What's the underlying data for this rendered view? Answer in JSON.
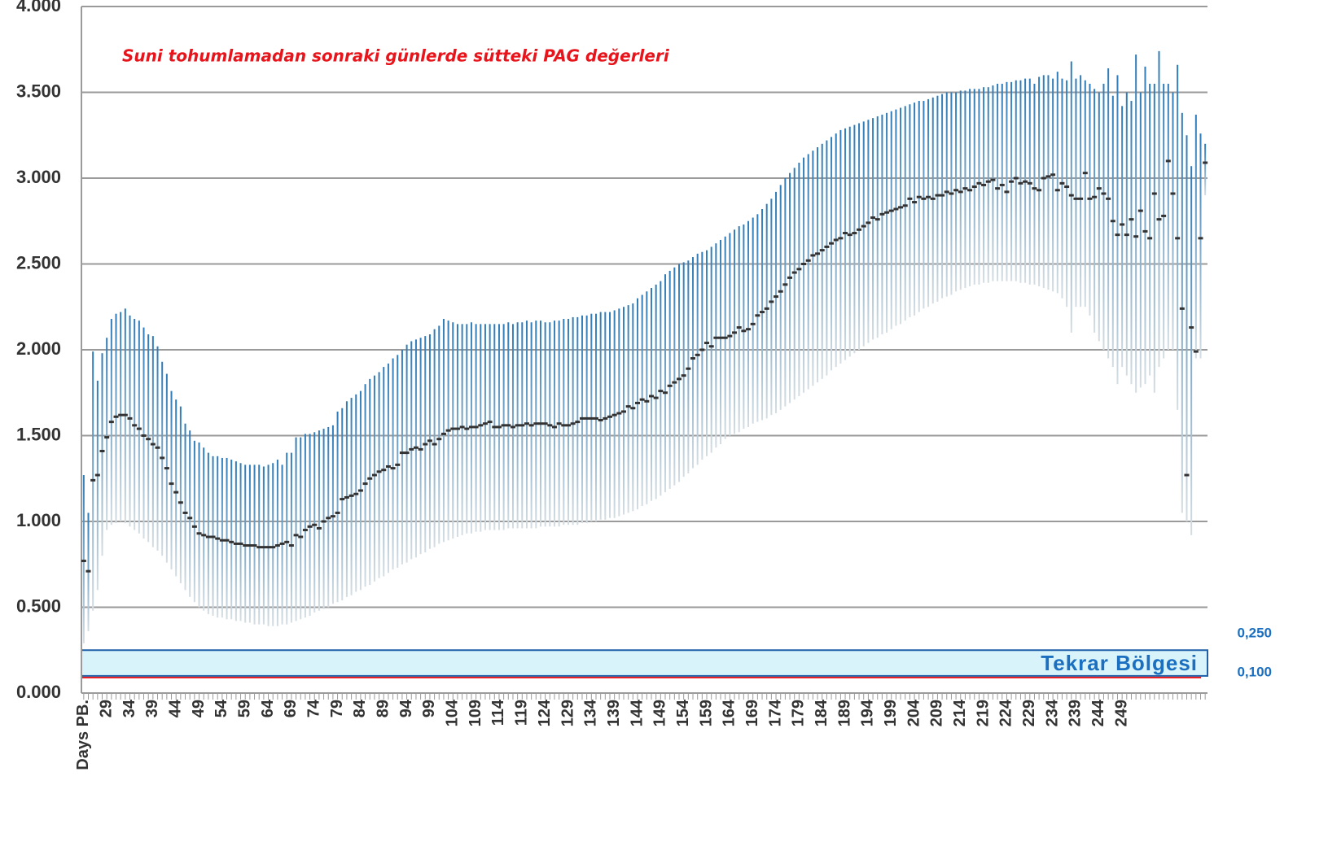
{
  "chart_data": {
    "type": "range",
    "title": "Suni tohumlamadan sonraki günlerde sütteki PAG değerleri",
    "x": [
      24,
      25,
      26,
      27,
      28,
      29,
      30,
      31,
      32,
      33,
      34,
      35,
      36,
      37,
      38,
      39,
      40,
      41,
      42,
      43,
      44,
      45,
      46,
      47,
      48,
      49,
      50,
      51,
      52,
      53,
      54,
      55,
      56,
      57,
      58,
      59,
      60,
      61,
      62,
      63,
      64,
      65,
      66,
      67,
      68,
      69,
      70,
      71,
      72,
      73,
      74,
      75,
      76,
      77,
      78,
      79,
      80,
      81,
      82,
      83,
      84,
      85,
      86,
      87,
      88,
      89,
      90,
      91,
      92,
      93,
      94,
      95,
      96,
      97,
      98,
      99,
      100,
      101,
      102,
      103,
      104,
      105,
      106,
      107,
      108,
      109,
      110,
      111,
      112,
      113,
      114,
      115,
      116,
      117,
      118,
      119,
      120,
      121,
      122,
      123,
      124,
      125,
      126,
      127,
      128,
      129,
      130,
      131,
      132,
      133,
      134,
      135,
      136,
      137,
      138,
      139,
      140,
      141,
      142,
      143,
      144,
      145,
      146,
      147,
      148,
      149,
      150,
      151,
      152,
      153,
      154,
      155,
      156,
      157,
      158,
      159,
      160,
      161,
      162,
      163,
      164,
      165,
      166,
      167,
      168,
      169,
      170,
      171,
      172,
      173,
      174,
      175,
      176,
      177,
      178,
      179,
      180,
      181,
      182,
      183,
      184,
      185,
      186,
      187,
      188,
      189,
      190,
      191,
      192,
      193,
      194,
      195,
      196,
      197,
      198,
      199,
      200,
      201,
      202,
      203,
      204,
      205,
      206,
      207,
      208,
      209,
      210,
      211,
      212,
      213,
      214,
      215,
      216,
      217,
      218,
      219,
      220,
      221,
      222,
      223,
      224,
      225,
      226,
      227,
      228,
      229,
      230,
      231,
      232,
      233,
      234,
      235,
      236,
      237,
      238,
      239,
      240,
      241,
      242,
      243,
      244,
      245,
      246,
      247,
      248,
      249,
      250,
      251,
      252,
      253,
      254,
      255,
      256,
      257,
      258,
      259,
      260,
      261,
      262,
      263,
      264,
      265,
      266,
      267
    ],
    "median": [
      0.77,
      0.71,
      1.24,
      1.27,
      1.41,
      1.49,
      1.58,
      1.61,
      1.62,
      1.62,
      1.6,
      1.56,
      1.54,
      1.5,
      1.48,
      1.45,
      1.43,
      1.37,
      1.31,
      1.22,
      1.17,
      1.11,
      1.05,
      1.02,
      0.97,
      0.93,
      0.92,
      0.91,
      0.91,
      0.9,
      0.89,
      0.89,
      0.88,
      0.87,
      0.87,
      0.86,
      0.86,
      0.86,
      0.85,
      0.85,
      0.85,
      0.85,
      0.86,
      0.87,
      0.88,
      0.86,
      0.92,
      0.91,
      0.95,
      0.97,
      0.98,
      0.96,
      1.0,
      1.02,
      1.03,
      1.05,
      1.13,
      1.14,
      1.15,
      1.16,
      1.18,
      1.22,
      1.25,
      1.27,
      1.29,
      1.3,
      1.32,
      1.31,
      1.33,
      1.4,
      1.4,
      1.42,
      1.43,
      1.42,
      1.45,
      1.47,
      1.45,
      1.48,
      1.51,
      1.53,
      1.54,
      1.54,
      1.55,
      1.54,
      1.55,
      1.55,
      1.56,
      1.57,
      1.58,
      1.55,
      1.55,
      1.56,
      1.56,
      1.55,
      1.56,
      1.56,
      1.57,
      1.56,
      1.57,
      1.57,
      1.57,
      1.56,
      1.55,
      1.57,
      1.56,
      1.56,
      1.57,
      1.58,
      1.6,
      1.6,
      1.6,
      1.6,
      1.59,
      1.6,
      1.61,
      1.62,
      1.63,
      1.64,
      1.67,
      1.66,
      1.69,
      1.71,
      1.7,
      1.73,
      1.72,
      1.76,
      1.75,
      1.79,
      1.81,
      1.83,
      1.85,
      1.89,
      1.95,
      1.97,
      2.0,
      2.04,
      2.02,
      2.07,
      2.07,
      2.07,
      2.08,
      2.1,
      2.13,
      2.11,
      2.12,
      2.15,
      2.2,
      2.22,
      2.24,
      2.28,
      2.31,
      2.34,
      2.38,
      2.42,
      2.45,
      2.47,
      2.5,
      2.52,
      2.55,
      2.56,
      2.58,
      2.6,
      2.62,
      2.64,
      2.65,
      2.68,
      2.67,
      2.68,
      2.7,
      2.72,
      2.74,
      2.77,
      2.76,
      2.79,
      2.8,
      2.81,
      2.82,
      2.83,
      2.84,
      2.88,
      2.86,
      2.89,
      2.88,
      2.89,
      2.88,
      2.9,
      2.9,
      2.92,
      2.91,
      2.93,
      2.92,
      2.94,
      2.93,
      2.95,
      2.97,
      2.96,
      2.98,
      2.99,
      2.94,
      2.96,
      2.92,
      2.98,
      3.0,
      2.97,
      2.98,
      2.97,
      2.94,
      2.93,
      3.0,
      3.01,
      3.02,
      2.93,
      2.97,
      2.95,
      2.9,
      2.88,
      2.88,
      3.03,
      2.88,
      2.89,
      2.94,
      2.91,
      2.88,
      2.75,
      2.67,
      2.73,
      2.67,
      2.76,
      2.66,
      2.81,
      2.69,
      2.65,
      2.91,
      2.76,
      2.78,
      3.1,
      2.91,
      2.65,
      2.24,
      1.27,
      2.13,
      1.99,
      2.65,
      3.09
    ],
    "high": [
      1.27,
      1.05,
      1.99,
      1.82,
      1.98,
      2.07,
      2.18,
      2.21,
      2.22,
      2.24,
      2.2,
      2.18,
      2.17,
      2.13,
      2.09,
      2.08,
      2.02,
      1.93,
      1.86,
      1.76,
      1.71,
      1.67,
      1.57,
      1.53,
      1.47,
      1.46,
      1.43,
      1.4,
      1.38,
      1.38,
      1.37,
      1.37,
      1.36,
      1.35,
      1.34,
      1.33,
      1.33,
      1.33,
      1.33,
      1.32,
      1.33,
      1.34,
      1.36,
      1.33,
      1.4,
      1.4,
      1.49,
      1.49,
      1.51,
      1.51,
      1.52,
      1.53,
      1.54,
      1.55,
      1.56,
      1.64,
      1.66,
      1.7,
      1.72,
      1.74,
      1.76,
      1.8,
      1.83,
      1.85,
      1.87,
      1.9,
      1.92,
      1.95,
      1.97,
      2.0,
      2.03,
      2.05,
      2.06,
      2.07,
      2.08,
      2.09,
      2.12,
      2.14,
      2.18,
      2.17,
      2.16,
      2.15,
      2.15,
      2.15,
      2.16,
      2.15,
      2.15,
      2.15,
      2.15,
      2.15,
      2.15,
      2.15,
      2.16,
      2.15,
      2.16,
      2.16,
      2.17,
      2.16,
      2.17,
      2.17,
      2.16,
      2.16,
      2.17,
      2.17,
      2.18,
      2.18,
      2.19,
      2.19,
      2.2,
      2.2,
      2.21,
      2.21,
      2.22,
      2.22,
      2.22,
      2.23,
      2.24,
      2.25,
      2.26,
      2.27,
      2.3,
      2.32,
      2.34,
      2.36,
      2.38,
      2.4,
      2.44,
      2.46,
      2.48,
      2.5,
      2.51,
      2.52,
      2.54,
      2.56,
      2.57,
      2.58,
      2.6,
      2.62,
      2.64,
      2.66,
      2.68,
      2.7,
      2.72,
      2.73,
      2.75,
      2.77,
      2.79,
      2.82,
      2.85,
      2.88,
      2.92,
      2.96,
      3.0,
      3.03,
      3.06,
      3.09,
      3.12,
      3.14,
      3.16,
      3.18,
      3.2,
      3.22,
      3.24,
      3.26,
      3.28,
      3.29,
      3.3,
      3.31,
      3.32,
      3.33,
      3.34,
      3.35,
      3.36,
      3.37,
      3.38,
      3.39,
      3.4,
      3.41,
      3.42,
      3.43,
      3.44,
      3.45,
      3.45,
      3.46,
      3.47,
      3.48,
      3.49,
      3.5,
      3.5,
      3.5,
      3.51,
      3.51,
      3.52,
      3.52,
      3.52,
      3.53,
      3.53,
      3.54,
      3.55,
      3.55,
      3.56,
      3.56,
      3.57,
      3.57,
      3.58,
      3.58,
      3.55,
      3.59,
      3.6,
      3.6,
      3.58,
      3.62,
      3.58,
      3.57,
      3.68,
      3.58,
      3.6,
      3.57,
      3.55,
      3.52,
      3.5,
      3.55,
      3.64,
      3.48,
      3.6,
      3.42,
      3.5,
      3.45,
      3.72,
      3.5,
      3.65,
      3.55,
      3.55,
      3.74,
      3.55,
      3.55,
      3.5,
      3.66,
      3.38,
      3.25,
      3.07,
      3.37,
      3.26,
      3.2
    ],
    "low": [
      0.29,
      0.36,
      0.48,
      0.6,
      0.8,
      0.95,
      0.98,
      0.99,
      1.0,
      0.99,
      0.97,
      0.95,
      0.93,
      0.9,
      0.88,
      0.85,
      0.83,
      0.8,
      0.76,
      0.72,
      0.68,
      0.64,
      0.6,
      0.56,
      0.53,
      0.5,
      0.48,
      0.46,
      0.45,
      0.44,
      0.44,
      0.43,
      0.43,
      0.42,
      0.42,
      0.41,
      0.41,
      0.4,
      0.4,
      0.4,
      0.39,
      0.39,
      0.39,
      0.4,
      0.4,
      0.41,
      0.42,
      0.43,
      0.44,
      0.45,
      0.47,
      0.48,
      0.49,
      0.5,
      0.52,
      0.53,
      0.54,
      0.56,
      0.57,
      0.59,
      0.6,
      0.62,
      0.63,
      0.65,
      0.67,
      0.68,
      0.7,
      0.72,
      0.73,
      0.75,
      0.76,
      0.78,
      0.79,
      0.81,
      0.82,
      0.84,
      0.85,
      0.87,
      0.88,
      0.89,
      0.9,
      0.91,
      0.92,
      0.93,
      0.93,
      0.94,
      0.94,
      0.95,
      0.95,
      0.95,
      0.95,
      0.95,
      0.96,
      0.96,
      0.96,
      0.96,
      0.96,
      0.96,
      0.96,
      0.97,
      0.97,
      0.97,
      0.97,
      0.97,
      0.98,
      0.98,
      0.98,
      0.98,
      0.99,
      0.99,
      1.0,
      1.0,
      1.01,
      1.01,
      1.02,
      1.02,
      1.03,
      1.04,
      1.05,
      1.06,
      1.07,
      1.09,
      1.1,
      1.12,
      1.13,
      1.15,
      1.17,
      1.19,
      1.21,
      1.23,
      1.26,
      1.28,
      1.31,
      1.33,
      1.36,
      1.38,
      1.4,
      1.43,
      1.45,
      1.48,
      1.5,
      1.51,
      1.52,
      1.54,
      1.55,
      1.57,
      1.58,
      1.59,
      1.6,
      1.62,
      1.63,
      1.65,
      1.67,
      1.69,
      1.71,
      1.73,
      1.75,
      1.77,
      1.79,
      1.81,
      1.83,
      1.85,
      1.88,
      1.9,
      1.92,
      1.94,
      1.96,
      1.98,
      2.0,
      2.02,
      2.04,
      2.06,
      2.07,
      2.09,
      2.1,
      2.12,
      2.14,
      2.15,
      2.17,
      2.19,
      2.2,
      2.22,
      2.24,
      2.25,
      2.27,
      2.28,
      2.3,
      2.31,
      2.32,
      2.34,
      2.35,
      2.36,
      2.37,
      2.38,
      2.38,
      2.39,
      2.39,
      2.4,
      2.4,
      2.4,
      2.4,
      2.4,
      2.4,
      2.39,
      2.39,
      2.38,
      2.38,
      2.37,
      2.36,
      2.35,
      2.34,
      2.33,
      2.3,
      2.25,
      2.1,
      2.25,
      2.25,
      2.25,
      2.2,
      2.1,
      2.05,
      2.0,
      1.95,
      1.9,
      1.8,
      1.9,
      1.85,
      1.8,
      1.75,
      1.78,
      1.8,
      1.85,
      1.75,
      1.9,
      1.95,
      2.0,
      2.0,
      1.65,
      1.05,
      1.0,
      0.92,
      1.95,
      1.95,
      2.9
    ],
    "bar_color": "#2e7bb8",
    "median_color": "#333333",
    "xlim": [
      23.5,
      267.5
    ],
    "xticks": [
      {
        "value": 24,
        "label": "Days PB."
      },
      29,
      34,
      39,
      44,
      49,
      54,
      59,
      64,
      69,
      74,
      79,
      84,
      89,
      94,
      99,
      104,
      109,
      114,
      119,
      124,
      129,
      134,
      139,
      144,
      149,
      154,
      159,
      164,
      169,
      174,
      179,
      184,
      189,
      194,
      199,
      204,
      209,
      214,
      219,
      224,
      229,
      234,
      239,
      244,
      249
    ],
    "ylim": [
      0,
      4
    ],
    "yticks": [
      {
        "value": 0,
        "label": "0.000"
      },
      {
        "value": 0.5,
        "label": "0.500"
      },
      {
        "value": 1,
        "label": "1.000"
      },
      {
        "value": 1.5,
        "label": "1.500"
      },
      {
        "value": 2,
        "label": "2.000"
      },
      {
        "value": 2.5,
        "label": "2.500"
      },
      {
        "value": 3,
        "label": "3.000"
      },
      {
        "value": 3.5,
        "label": "3.500"
      },
      {
        "value": 4,
        "label": "4.000"
      }
    ],
    "grid": true,
    "band": {
      "low": 0.1,
      "high": 0.25,
      "label": "Tekrar Bölgesi",
      "low_label": "0,100",
      "high_label": "0,250"
    }
  }
}
